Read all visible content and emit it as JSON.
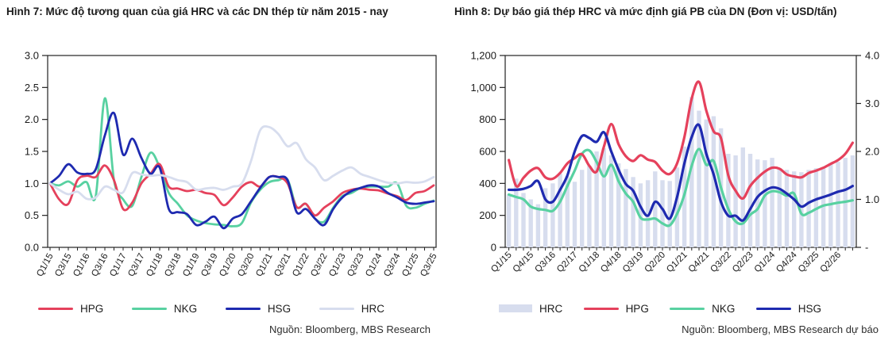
{
  "figure7": {
    "title": "Hình 7: Mức độ tương quan của giá HRC và các DN thép từ năm 2015 - nay",
    "source": "Nguồn: Bloomberg, MBS Research",
    "legend_items": [
      {
        "label": "HPG",
        "color": "#e5415c",
        "swatch": "line"
      },
      {
        "label": "NKG",
        "color": "#58d1a1",
        "swatch": "line"
      },
      {
        "label": "HSG",
        "color": "#1e2ab0",
        "swatch": "line"
      },
      {
        "label": "HRC",
        "color": "#d7ddee",
        "swatch": "line"
      }
    ]
  },
  "figure8": {
    "title": "Hình 8: Dự báo giá thép HRC và mức định giá PB của DN (Đơn vị: USD/tấn)",
    "source": "Nguồn: Bloomberg, MBS Research dự báo",
    "legend_items": [
      {
        "label": "HRC",
        "color": "#d7ddee",
        "swatch": "bar"
      },
      {
        "label": "HPG",
        "color": "#e5415c",
        "swatch": "line"
      },
      {
        "label": "NKG",
        "color": "#58d1a1",
        "swatch": "line"
      },
      {
        "label": "HSG",
        "color": "#1e2ab0",
        "swatch": "line"
      }
    ]
  },
  "chart_data": [
    {
      "type": "line",
      "title": "Hình 7: Mức độ tương quan của giá HRC và các DN thép từ năm 2015 - nay",
      "xlabel": "",
      "ylabel": "",
      "ylim": [
        0,
        3
      ],
      "ytick_labels": [
        "0.0",
        "0.5",
        "1.0",
        "1.5",
        "2.0",
        "2.5",
        "3.0"
      ],
      "grid": false,
      "legend_position": "bottom",
      "x_label_step": 2,
      "x_labels": [
        "Q1/15",
        "Q2/15",
        "Q3/15",
        "Q4/15",
        "Q1/16",
        "Q2/16",
        "Q3/16",
        "Q4/16",
        "Q1/17",
        "Q2/17",
        "Q3/17",
        "Q4/17",
        "Q1/18",
        "Q2/18",
        "Q3/18",
        "Q4/18",
        "Q1/19",
        "Q2/19",
        "Q3/19",
        "Q4/19",
        "Q1/20",
        "Q2/20",
        "Q3/20",
        "Q4/20",
        "Q1/21",
        "Q2/21",
        "Q3/21",
        "Q4/21",
        "Q1/22",
        "Q2/22",
        "Q3/22",
        "Q4/22",
        "Q1/23",
        "Q2/23",
        "Q3/23",
        "Q4/23",
        "Q1/24",
        "Q2/24",
        "Q3/24",
        "Q4/24",
        "Q1/25",
        "Q2/25",
        "Q3/25"
      ],
      "draw_order": [
        "NKG",
        "HPG",
        "HSG",
        "HRC"
      ],
      "series": [
        {
          "name": "HPG",
          "color": "#e5415c",
          "values": [
            1.0,
            0.75,
            0.68,
            1.05,
            1.12,
            1.1,
            1.28,
            1.05,
            0.6,
            0.7,
            1.0,
            1.15,
            1.3,
            0.95,
            0.92,
            0.88,
            0.9,
            0.85,
            0.82,
            0.66,
            0.78,
            0.95,
            1.02,
            0.95,
            1.1,
            1.1,
            1.0,
            0.63,
            0.68,
            0.5,
            0.62,
            0.72,
            0.85,
            0.9,
            0.92,
            0.9,
            0.89,
            0.84,
            0.8,
            0.74,
            0.85,
            0.88,
            0.97
          ]
        },
        {
          "name": "NKG",
          "color": "#58d1a1",
          "values": [
            1.0,
            0.97,
            1.03,
            0.95,
            1.02,
            0.8,
            2.33,
            1.05,
            0.75,
            0.65,
            1.1,
            1.48,
            1.25,
            0.85,
            0.68,
            0.5,
            0.42,
            0.38,
            0.36,
            0.35,
            0.33,
            0.38,
            0.7,
            0.9,
            1.02,
            1.05,
            1.06,
            0.63,
            0.68,
            0.45,
            0.4,
            0.62,
            0.8,
            0.85,
            0.93,
            0.95,
            0.95,
            0.95,
            1.0,
            0.65,
            0.62,
            0.68,
            0.73
          ]
        },
        {
          "name": "HSG",
          "color": "#1e2ab0",
          "values": [
            1.0,
            1.12,
            1.3,
            1.17,
            1.15,
            1.22,
            1.75,
            2.1,
            1.45,
            1.7,
            1.4,
            1.15,
            1.25,
            0.6,
            0.55,
            0.52,
            0.35,
            0.4,
            0.48,
            0.3,
            0.45,
            0.52,
            0.72,
            0.93,
            1.1,
            1.1,
            1.05,
            0.55,
            0.6,
            0.45,
            0.35,
            0.6,
            0.78,
            0.88,
            0.93,
            0.97,
            0.95,
            0.85,
            0.78,
            0.7,
            0.68,
            0.7,
            0.72
          ]
        },
        {
          "name": "HRC",
          "color": "#d7ddee",
          "values": [
            1.0,
            0.9,
            0.83,
            0.87,
            0.76,
            0.78,
            0.95,
            0.9,
            0.86,
            1.16,
            1.14,
            1.12,
            1.13,
            1.1,
            1.05,
            1.02,
            0.9,
            0.92,
            0.93,
            0.9,
            0.95,
            1.0,
            1.35,
            1.83,
            1.88,
            1.77,
            1.58,
            1.63,
            1.38,
            1.25,
            1.05,
            1.12,
            1.2,
            1.25,
            1.15,
            1.1,
            1.05,
            1.01,
            1.0,
            1.02,
            1.01,
            1.03,
            1.1
          ]
        }
      ]
    },
    {
      "type": "bar+line",
      "title": "Hình 8: Dự báo giá thép HRC và mức định giá PB của DN (Đơn vị: USD/tấn)",
      "xlabel": "",
      "grid": false,
      "legend_position": "bottom",
      "x_label_step": 3,
      "x_labels": [
        "Q1/15",
        "Q2/15",
        "Q3/15",
        "Q4/15",
        "Q1/16",
        "Q2/16",
        "Q3/16",
        "Q4/16",
        "Q1/17",
        "Q2/17",
        "Q3/17",
        "Q4/17",
        "Q1/18",
        "Q2/18",
        "Q3/18",
        "Q4/18",
        "Q1/19",
        "Q2/19",
        "Q3/19",
        "Q4/19",
        "Q1/20",
        "Q2/20",
        "Q3/20",
        "Q4/20",
        "Q1/21",
        "Q2/21",
        "Q3/21",
        "Q4/21",
        "Q1/22",
        "Q2/22",
        "Q3/22",
        "Q4/22",
        "Q1/23",
        "Q2/23",
        "Q3/23",
        "Q4/23",
        "Q1/24",
        "Q2/24",
        "Q3/24",
        "Q4/24",
        "Q1/25",
        "Q2/25",
        "Q3/25",
        "Q4/25",
        "Q1/26",
        "Q2/26",
        "Q3/26",
        "Q4/26"
      ],
      "left_axis": {
        "lim": [
          0,
          1200
        ],
        "tick_labels": [
          "0",
          "200",
          "400",
          "600",
          "800",
          "1,000",
          "1,200"
        ]
      },
      "right_axis": {
        "lim": [
          0,
          4
        ],
        "tick_labels": [
          "-",
          "1.0",
          "2.0",
          "3.0",
          "4.0"
        ]
      },
      "bar_series": {
        "name": "HRC",
        "color": "#d7ddee",
        "axis": "left",
        "values": [
          330,
          430,
          340,
          300,
          270,
          370,
          400,
          460,
          445,
          410,
          485,
          510,
          600,
          620,
          575,
          525,
          490,
          440,
          400,
          420,
          475,
          420,
          415,
          500,
          630,
          940,
          855,
          800,
          820,
          745,
          585,
          575,
          625,
          585,
          550,
          545,
          560,
          495,
          485,
          475,
          470,
          485,
          495,
          500,
          520,
          535,
          560,
          575
        ]
      },
      "draw_order": [
        "NKG",
        "HPG",
        "HSG"
      ],
      "series": [
        {
          "name": "HPG",
          "color": "#e5415c",
          "axis": "right",
          "values": [
            1.82,
            1.28,
            1.45,
            1.6,
            1.65,
            1.46,
            1.43,
            1.55,
            1.75,
            1.86,
            1.94,
            1.7,
            1.58,
            2.1,
            2.57,
            2.15,
            1.9,
            1.8,
            1.92,
            1.83,
            1.78,
            1.6,
            1.53,
            1.75,
            2.3,
            3.1,
            3.45,
            2.85,
            2.42,
            2.28,
            1.5,
            1.18,
            1.02,
            1.28,
            1.45,
            1.58,
            1.66,
            1.64,
            1.52,
            1.48,
            1.46,
            1.55,
            1.6,
            1.66,
            1.74,
            1.82,
            1.95,
            2.18
          ]
        },
        {
          "name": "NKG",
          "color": "#58d1a1",
          "axis": "right",
          "values": [
            1.1,
            1.05,
            1.0,
            0.85,
            0.8,
            0.78,
            0.76,
            0.95,
            1.28,
            1.6,
            1.95,
            2.02,
            1.78,
            1.48,
            1.72,
            1.38,
            1.12,
            0.95,
            0.62,
            0.58,
            0.6,
            0.5,
            0.46,
            0.7,
            1.1,
            1.7,
            2.05,
            1.72,
            1.8,
            1.25,
            0.8,
            0.54,
            0.5,
            0.68,
            0.8,
            1.08,
            1.17,
            1.15,
            1.08,
            1.12,
            0.7,
            0.72,
            0.8,
            0.87,
            0.9,
            0.93,
            0.95,
            0.98
          ]
        },
        {
          "name": "HSG",
          "color": "#1e2ab0",
          "axis": "right",
          "values": [
            1.2,
            1.2,
            1.22,
            1.28,
            1.38,
            1.0,
            0.95,
            1.2,
            1.5,
            2.0,
            2.32,
            2.28,
            2.2,
            2.4,
            2.0,
            1.62,
            1.32,
            1.18,
            0.85,
            0.66,
            0.95,
            0.8,
            0.6,
            1.05,
            1.75,
            2.3,
            2.55,
            1.95,
            1.52,
            0.95,
            0.66,
            0.66,
            0.56,
            0.8,
            1.05,
            1.18,
            1.25,
            1.22,
            1.12,
            1.0,
            0.85,
            0.93,
            1.0,
            1.05,
            1.1,
            1.16,
            1.2,
            1.28
          ]
        }
      ]
    }
  ]
}
